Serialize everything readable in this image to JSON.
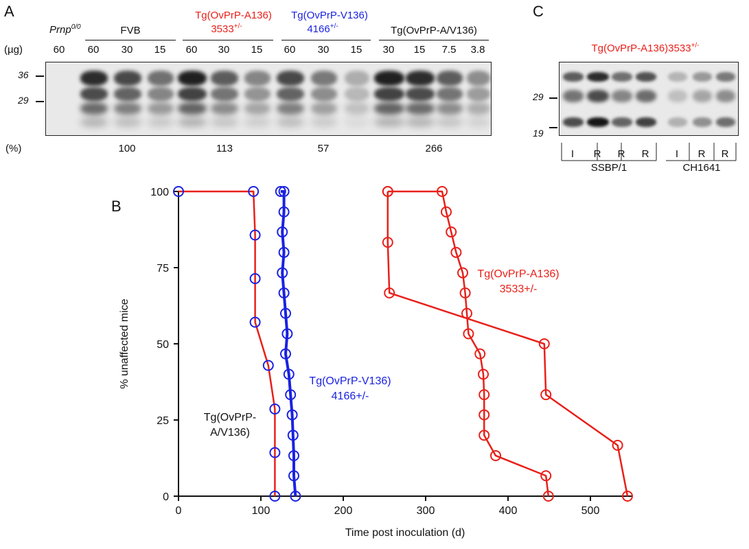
{
  "panel_a": {
    "letter": "A",
    "ug_label": "(µg)",
    "pct_label": "(%)",
    "prnp": {
      "label": "Prnp",
      "sup": "0/0",
      "lanes": [
        "60"
      ]
    },
    "groups": [
      {
        "title": "FVB",
        "sup": "",
        "line2": "",
        "line2_sup": "",
        "color": "#111111",
        "lanes": [
          "60",
          "30",
          "15"
        ],
        "percent": "100"
      },
      {
        "title": "Tg(OvPrP-A136)",
        "line2": "3533",
        "line2_sup": "+/-",
        "color": "#e8201a",
        "lanes": [
          "60",
          "30",
          "15"
        ],
        "percent": "113"
      },
      {
        "title": "Tg(OvPrP-V136)",
        "line2": "4166",
        "line2_sup": "+/-",
        "color": "#1a22e0",
        "lanes": [
          "60",
          "30",
          "15"
        ],
        "percent": "57"
      },
      {
        "title": "Tg(OvPrP-A/V136)",
        "line2": "",
        "line2_sup": "",
        "color": "#111111",
        "lanes": [
          "30",
          "15",
          "7.5",
          "3.8"
        ],
        "percent": "266"
      }
    ],
    "mw_markers": [
      "36",
      "29"
    ]
  },
  "panel_c": {
    "letter": "C",
    "title": "Tg(OvPrP-A136)3533",
    "title_sup": "+/-",
    "title_color": "#e8201a",
    "mw_markers": [
      "29",
      "19"
    ],
    "lanes": [
      "I",
      "R",
      "R",
      "R",
      "I",
      "R",
      "R"
    ],
    "groups": [
      "SSBP/1",
      "CH1641"
    ]
  },
  "panel_b": {
    "letter": "B",
    "chart_data": {
      "type": "line",
      "xlabel": "Time post inoculation (d)",
      "ylabel": "% unaffected mice",
      "xlim": [
        0,
        550
      ],
      "ylim": [
        0,
        100
      ],
      "x_ticks": [
        0,
        100,
        200,
        300,
        400,
        500
      ],
      "y_ticks": [
        0,
        25,
        50,
        75,
        100
      ],
      "series": [
        {
          "name": "Tg(OvPrP-A/V136)",
          "label_lines": [
            "Tg(OvPrP-",
            "A/V136)"
          ],
          "color": "#e8201a",
          "marker_color": "#1a22e0",
          "points": [
            [
              0,
              100
            ],
            [
              91,
              100
            ],
            [
              93,
              85.7
            ],
            [
              93,
              71.4
            ],
            [
              93,
              57.1
            ],
            [
              109,
              42.9
            ],
            [
              117,
              28.6
            ],
            [
              117,
              14.3
            ],
            [
              117,
              0
            ]
          ]
        },
        {
          "name": "Tg(OvPrP-V136) 4166+/-",
          "label_lines": [
            "Tg(OvPrP-V136)",
            "4166+/-"
          ],
          "color": "#1a22e0",
          "marker_color": "#1a22e0",
          "points": [
            [
              124,
              100
            ],
            [
              128,
              100
            ],
            [
              128,
              93.3
            ],
            [
              126,
              86.7
            ],
            [
              128,
              80
            ],
            [
              126,
              73.3
            ],
            [
              128,
              66.7
            ],
            [
              130,
              60
            ],
            [
              132,
              53.3
            ],
            [
              130,
              46.7
            ],
            [
              134,
              40
            ],
            [
              136,
              33.3
            ],
            [
              138,
              26.7
            ],
            [
              139,
              20
            ],
            [
              140,
              13.3
            ],
            [
              140,
              6.7
            ],
            [
              142,
              0
            ]
          ]
        },
        {
          "name": "Tg(OvPrP-A136) 3533+/- (short)",
          "label_lines": [
            "Tg(OvPrP-A136)",
            "3533+/-"
          ],
          "color": "#e8201a",
          "marker_color": "#e8201a",
          "points": [
            [
              254,
              100
            ],
            [
              320,
              100
            ],
            [
              325,
              93.3
            ],
            [
              331,
              86.7
            ],
            [
              337,
              80
            ],
            [
              345,
              73.3
            ],
            [
              348,
              66.7
            ],
            [
              350,
              60
            ],
            [
              352,
              53.3
            ],
            [
              366,
              46.7
            ],
            [
              370,
              40
            ],
            [
              371,
              33.3
            ],
            [
              371,
              26.7
            ],
            [
              371,
              20
            ],
            [
              385,
              13.3
            ],
            [
              446,
              6.7
            ],
            [
              449,
              0
            ]
          ]
        },
        {
          "name": "Tg(OvPrP-A136) 3533+/- (long)",
          "label_lines": [],
          "color": "#e8201a",
          "marker_color": "#e8201a",
          "points": [
            [
              254,
              100
            ],
            [
              254,
              83.3
            ],
            [
              256,
              66.7
            ],
            [
              444,
              50
            ],
            [
              446,
              33.3
            ],
            [
              533,
              16.7
            ],
            [
              545,
              0
            ]
          ]
        }
      ]
    }
  }
}
